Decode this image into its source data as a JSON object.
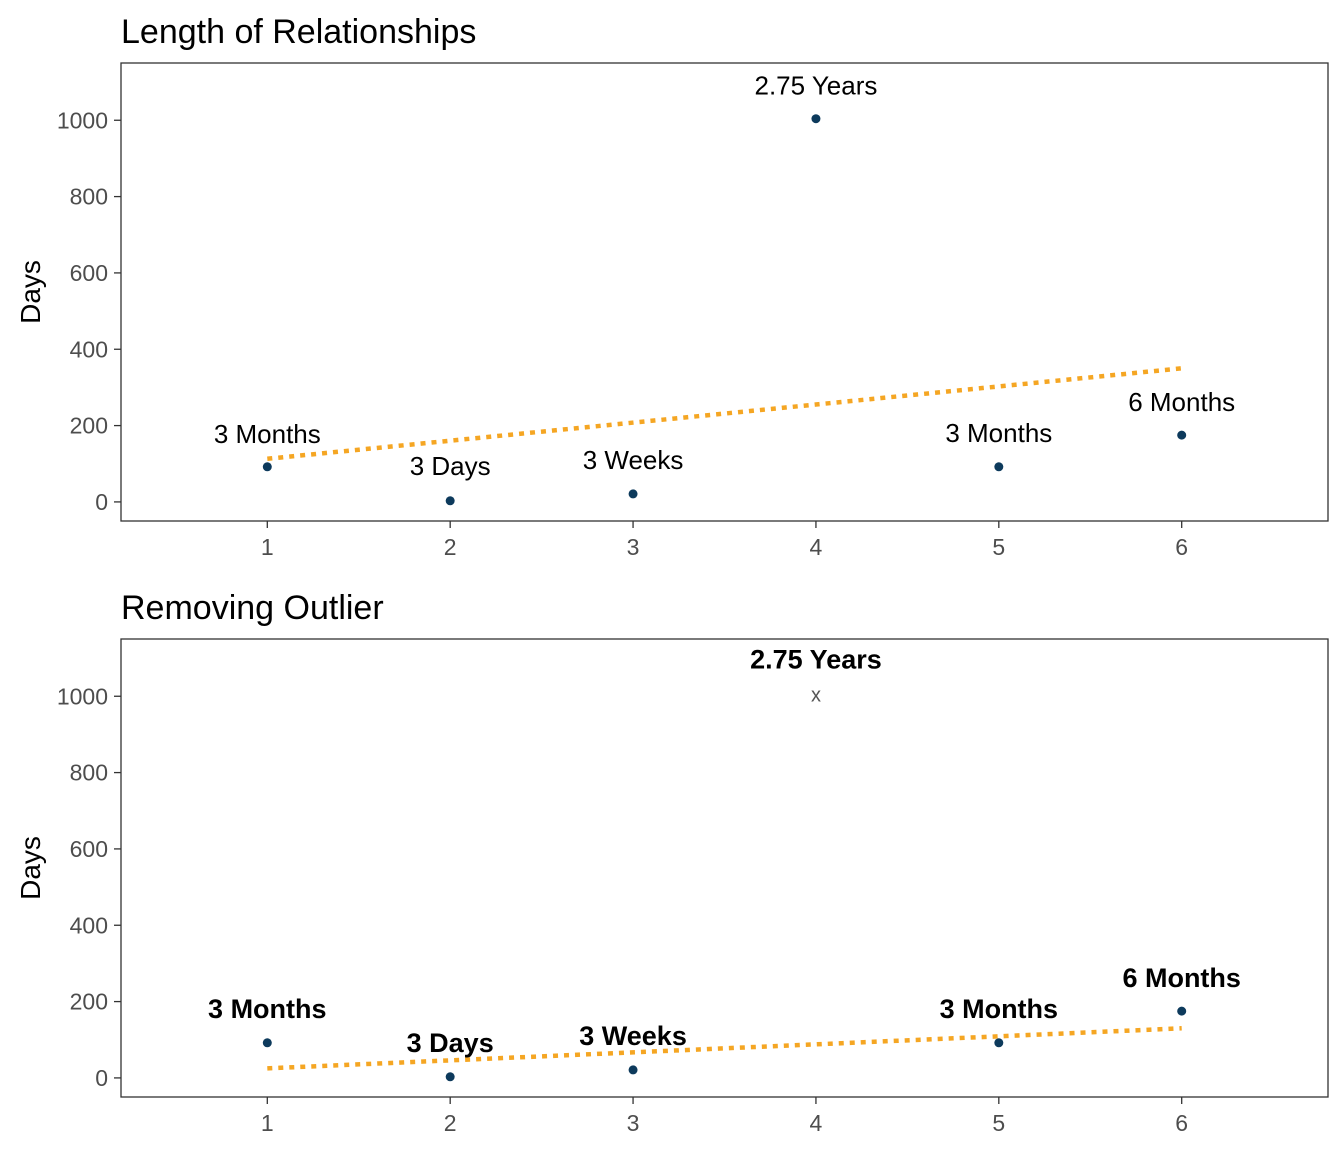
{
  "chart_data": [
    {
      "type": "scatter",
      "title": "Length of Relationships",
      "xlabel": "",
      "ylabel": "Days",
      "xlim": [
        0.2,
        6.8
      ],
      "ylim": [
        -50,
        1150
      ],
      "x_ticks": [
        1,
        2,
        3,
        4,
        5,
        6
      ],
      "y_ticks": [
        0,
        200,
        400,
        600,
        800,
        1000
      ],
      "grid": false,
      "points": [
        {
          "x": 1,
          "y": 92,
          "label": "3 Months"
        },
        {
          "x": 2,
          "y": 3,
          "label": "3 Days"
        },
        {
          "x": 3,
          "y": 21,
          "label": "3 Weeks"
        },
        {
          "x": 4,
          "y": 1004,
          "label": "2.75 Years"
        },
        {
          "x": 5,
          "y": 92,
          "label": "3 Months"
        },
        {
          "x": 6,
          "y": 175,
          "label": "6 Months"
        }
      ],
      "trend_line": {
        "x": [
          1,
          6
        ],
        "y": [
          113,
          350
        ],
        "style": "dotted",
        "color": "#f5a623"
      },
      "point_color": "#0d3a5c",
      "label_weight": "normal"
    },
    {
      "type": "scatter",
      "title": "Removing Outlier",
      "xlabel": "",
      "ylabel": "Days",
      "xlim": [
        0.2,
        6.8
      ],
      "ylim": [
        -50,
        1150
      ],
      "x_ticks": [
        1,
        2,
        3,
        4,
        5,
        6
      ],
      "y_ticks": [
        0,
        200,
        400,
        600,
        800,
        1000
      ],
      "grid": false,
      "points": [
        {
          "x": 1,
          "y": 92,
          "label": "3 Months"
        },
        {
          "x": 2,
          "y": 3,
          "label": "3 Days"
        },
        {
          "x": 3,
          "y": 21,
          "label": "3 Weeks"
        },
        {
          "x": 4,
          "y": 1004,
          "label": "2.75 Years",
          "removed": true,
          "marker": "x"
        },
        {
          "x": 5,
          "y": 92,
          "label": "3 Months"
        },
        {
          "x": 6,
          "y": 175,
          "label": "6 Months"
        }
      ],
      "trend_line": {
        "x": [
          1,
          6
        ],
        "y": [
          25,
          130
        ],
        "style": "dotted",
        "color": "#f5a623"
      },
      "point_color": "#0d3a5c",
      "label_weight": "bold"
    }
  ]
}
